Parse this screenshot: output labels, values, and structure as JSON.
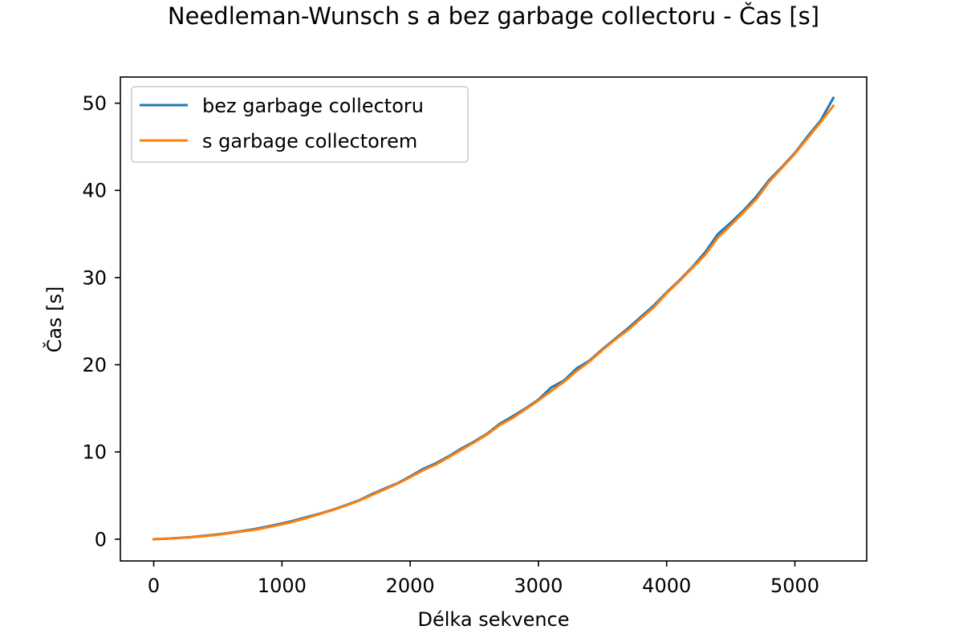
{
  "chart_data": {
    "type": "line",
    "title": "Needleman-Wunsch s a bez garbage collectoru - Čas [s]",
    "xlabel": "Délka sekvence",
    "ylabel": "Čas [s]",
    "xlim": [
      -260,
      5560
    ],
    "ylim": [
      -2.5,
      53
    ],
    "xticks": [
      0,
      1000,
      2000,
      3000,
      4000,
      5000
    ],
    "yticks": [
      0,
      10,
      20,
      30,
      40,
      50
    ],
    "xtick_labels": [
      "0",
      "1000",
      "2000",
      "3000",
      "4000",
      "5000"
    ],
    "ytick_labels": [
      "0",
      "10",
      "20",
      "30",
      "40",
      "50"
    ],
    "grid": false,
    "legend_position": "upper-left",
    "x": [
      0,
      100,
      200,
      300,
      400,
      500,
      600,
      700,
      800,
      900,
      1000,
      1100,
      1200,
      1300,
      1400,
      1500,
      1600,
      1700,
      1800,
      1900,
      2000,
      2100,
      2200,
      2300,
      2400,
      2500,
      2600,
      2700,
      2800,
      2900,
      3000,
      3100,
      3200,
      3300,
      3400,
      3500,
      3600,
      3700,
      3800,
      3900,
      4000,
      4100,
      4200,
      4300,
      4400,
      4500,
      4600,
      4700,
      4800,
      4900,
      5000,
      5100,
      5200,
      5300
    ],
    "series": [
      {
        "name": "bez garbage collectoru",
        "color": "#1f77b4",
        "values": [
          0.0,
          0.05,
          0.15,
          0.25,
          0.4,
          0.55,
          0.75,
          0.95,
          1.2,
          1.5,
          1.8,
          2.15,
          2.55,
          2.95,
          3.4,
          3.9,
          4.45,
          5.15,
          5.8,
          6.4,
          7.2,
          8.05,
          8.7,
          9.5,
          10.4,
          11.2,
          12.1,
          13.25,
          14.1,
          15.0,
          16.0,
          17.4,
          18.2,
          19.6,
          20.5,
          21.8,
          23.0,
          24.2,
          25.5,
          26.8,
          28.3,
          29.7,
          31.2,
          32.9,
          35.0,
          36.3,
          37.7,
          39.3,
          41.2,
          42.7,
          44.3,
          46.2,
          48.0,
          50.6
        ]
      },
      {
        "name": "s garbage collectorem",
        "color": "#ff7f0e",
        "values": [
          0.0,
          0.05,
          0.12,
          0.22,
          0.35,
          0.5,
          0.7,
          0.9,
          1.1,
          1.4,
          1.7,
          2.05,
          2.45,
          2.9,
          3.35,
          3.85,
          4.4,
          5.05,
          5.7,
          6.35,
          7.1,
          7.9,
          8.55,
          9.4,
          10.25,
          11.1,
          12.0,
          13.1,
          13.9,
          14.9,
          15.9,
          17.0,
          18.05,
          19.3,
          20.4,
          21.7,
          22.9,
          24.0,
          25.3,
          26.6,
          28.2,
          29.6,
          31.1,
          32.6,
          34.6,
          36.0,
          37.5,
          39.0,
          41.0,
          42.6,
          44.2,
          46.0,
          47.8,
          49.7
        ]
      }
    ],
    "legend": [
      {
        "label": "bez garbage collectoru",
        "color": "#1f77b4"
      },
      {
        "label": "s garbage collectorem",
        "color": "#ff7f0e"
      }
    ]
  }
}
